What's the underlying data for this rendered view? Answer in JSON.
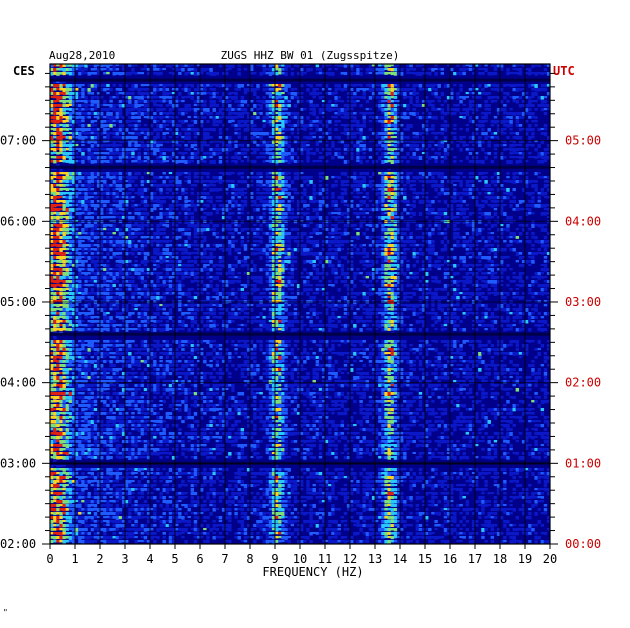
{
  "chart_data": {
    "type": "heatmap",
    "title": "ZUGS HHZ BW 01 (Zugsspitze)",
    "date": "Aug28,2010",
    "left_timezone": "CES",
    "right_timezone": "UTC",
    "xlabel": "FREQUENCY (HZ)",
    "xlim": [
      0,
      20
    ],
    "x_ticks": [
      "0",
      "1",
      "2",
      "3",
      "4",
      "5",
      "6",
      "7",
      "8",
      "9",
      "10",
      "11",
      "12",
      "13",
      "14",
      "15",
      "16",
      "17",
      "18",
      "19",
      "20"
    ],
    "y_ticks_left": [
      "07:00",
      "06:00",
      "05:00",
      "04:00",
      "03:00",
      "02:00"
    ],
    "y_ticks_right": [
      "05:00",
      "04:00",
      "03:00",
      "02:00",
      "01:00",
      "00:00"
    ],
    "y_tick_hours": [
      7,
      6,
      5,
      4,
      3,
      2
    ],
    "ylim_local_hours": [
      2,
      7.95
    ],
    "colormap": [
      "#00008a",
      "#0a18c8",
      "#1f5cff",
      "#29c8ff",
      "#7fe07a",
      "#ffd21f",
      "#e02010"
    ],
    "spectral_peaks": [
      {
        "frequency_hz": 0.3,
        "relative_intensity": 0.85,
        "note": "broadband low-frequency energy"
      },
      {
        "frequency_hz": 9.1,
        "relative_intensity": 0.7
      },
      {
        "frequency_hz": 13.6,
        "relative_intensity": 0.75
      }
    ],
    "dark_time_bands_local_hours": [
      7.75,
      6.67,
      4.6,
      3.0
    ]
  },
  "footer_mark": "\""
}
